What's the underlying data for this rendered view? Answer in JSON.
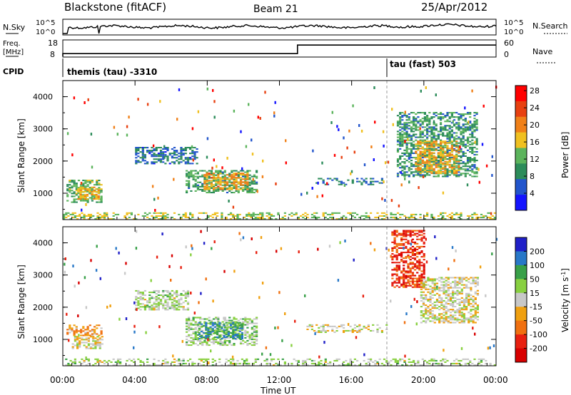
{
  "header": {
    "station": "Blackstone (fitACF)",
    "beam": "Beam 21",
    "date": "25/Apr/2012"
  },
  "noise_panel": {
    "left_label": "N.Sky",
    "left_ticks": [
      "10^5",
      "10^0"
    ],
    "right_label": "N.Search",
    "right_ticks": [
      "10^5",
      "10^0"
    ]
  },
  "freq_panel": {
    "left_label_top": "Freq.",
    "left_label_bottom": "[MHz]",
    "left_ticks": [
      "18",
      "8"
    ],
    "right_label": "Nave",
    "right_ticks": [
      "60",
      "0"
    ],
    "freq_steps": [
      {
        "from_hour": 0.0,
        "value": 10
      },
      {
        "from_hour": 13.0,
        "value": 15
      }
    ]
  },
  "cpid_panel": {
    "label": "CPID",
    "segments": [
      {
        "start_hour": 0.0,
        "text": "themis (tau) -3310"
      },
      {
        "start_hour": 18.0,
        "text": "tau (fast) 503"
      }
    ]
  },
  "colors": {
    "power": [
      "#1414ff",
      "#2255cc",
      "#2c8c5a",
      "#5cb45c",
      "#f0c020",
      "#f08018",
      "#e84010",
      "#ff0000"
    ],
    "velocity": [
      "#2020c8",
      "#2878c8",
      "#38a048",
      "#88d040",
      "#c8c8c8",
      "#f0a010",
      "#f07010",
      "#e82010",
      "#d80000"
    ]
  },
  "chart_data": {
    "type": "heatmap",
    "xlabel": "Time UT",
    "xticks": [
      "00:00",
      "04:00",
      "08:00",
      "12:00",
      "16:00",
      "20:00",
      "00:00"
    ],
    "xlim_hours": [
      0,
      24
    ],
    "ylabel": "Slant Range [km]",
    "yticks": [
      "1000",
      "2000",
      "3000",
      "4000"
    ],
    "ylim_km": [
      180,
      4500
    ],
    "panels": [
      {
        "name": "power",
        "colorbar_label": "Power [dB]",
        "colorbar_ticks": [
          "4",
          "8",
          "12",
          "16",
          "20",
          "24",
          "28"
        ],
        "colorbar_range": [
          0,
          30
        ],
        "patches": [
          {
            "t": [
              0.2,
              2.2
            ],
            "r": [
              700,
              1400
            ],
            "v": 12
          },
          {
            "t": [
              0.8,
              2.0
            ],
            "r": [
              800,
              1200
            ],
            "v": 18
          },
          {
            "t": [
              6.8,
              10.8
            ],
            "r": [
              1000,
              1700
            ],
            "v": 11
          },
          {
            "t": [
              7.8,
              10.2
            ],
            "r": [
              1100,
              1600
            ],
            "v": 19
          },
          {
            "t": [
              4.0,
              7.5
            ],
            "r": [
              1900,
              2400
            ],
            "v": 7
          },
          {
            "t": [
              14.0,
              18.0
            ],
            "r": [
              1250,
              1450
            ],
            "v": 7
          },
          {
            "t": [
              18.5,
              23.0
            ],
            "r": [
              1500,
              3500
            ],
            "v": 10
          },
          {
            "t": [
              19.5,
              22.0
            ],
            "r": [
              1600,
              2600
            ],
            "v": 18
          },
          {
            "t": [
              0,
              24
            ],
            "r": [
              180,
              380
            ],
            "v": 15
          }
        ]
      },
      {
        "name": "velocity",
        "colorbar_label": "Velocity [m s^-1]",
        "colorbar_ticks": [
          "200",
          "100",
          "50",
          "15",
          "-15",
          "-50",
          "-100",
          "-200"
        ],
        "colorbar_range": [
          -250,
          250
        ],
        "patches": [
          {
            "t": [
              0.2,
              2.2
            ],
            "r": [
              1100,
              1450
            ],
            "v": -60
          },
          {
            "t": [
              0.5,
              2.2
            ],
            "r": [
              700,
              1100
            ],
            "v": -20
          },
          {
            "t": [
              4.0,
              7.0
            ],
            "r": [
              1900,
              2500
            ],
            "v": 30
          },
          {
            "t": [
              6.8,
              10.8
            ],
            "r": [
              800,
              1700
            ],
            "v": 40
          },
          {
            "t": [
              7.5,
              10.0
            ],
            "r": [
              1000,
              1500
            ],
            "v": 120
          },
          {
            "t": [
              13.5,
              18.0
            ],
            "r": [
              1200,
              1450
            ],
            "v": 0
          },
          {
            "t": [
              18.2,
              20.0
            ],
            "r": [
              2600,
              4400
            ],
            "v": -160
          },
          {
            "t": [
              19.8,
              23.0
            ],
            "r": [
              1500,
              2900
            ],
            "v": 0
          },
          {
            "t": [
              0,
              24
            ],
            "r": [
              180,
              380
            ],
            "v": 30
          }
        ]
      }
    ]
  }
}
